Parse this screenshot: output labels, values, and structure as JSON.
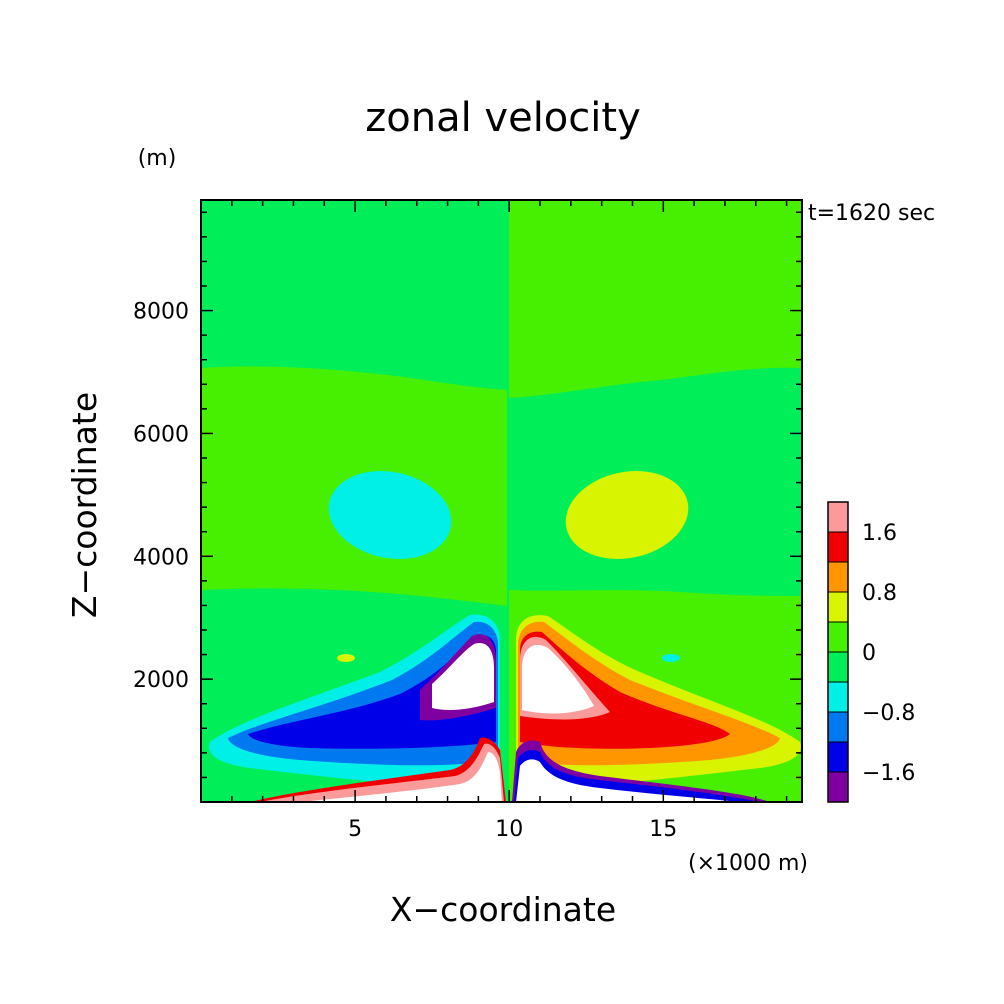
{
  "chart_data": {
    "type": "heatmap",
    "title": "zonal velocity",
    "time_label": "t=1620 sec",
    "xlabel": "X−coordinate",
    "ylabel": "Z−coordinate",
    "x_unit": "(×1000 m)",
    "y_unit": "(m)",
    "xlim": [
      0,
      19.5
    ],
    "ylim": [
      0,
      9800
    ],
    "x_ticks": [
      {
        "value": 5,
        "label": "5"
      },
      {
        "value": 10,
        "label": "10"
      },
      {
        "value": 15,
        "label": "15"
      }
    ],
    "y_ticks": [
      {
        "value": 2000,
        "label": "2000"
      },
      {
        "value": 4000,
        "label": "4000"
      },
      {
        "value": 6000,
        "label": "6000"
      },
      {
        "value": 8000,
        "label": "8000"
      }
    ],
    "colorbar": {
      "levels": [
        -2.4,
        -1.6,
        -1.2,
        -0.8,
        -0.4,
        0,
        0.4,
        0.8,
        1.2,
        1.6,
        2.0
      ],
      "colors": [
        "#7f00a0",
        "#0000e8",
        "#0078f0",
        "#00f0e8",
        "#00ef58",
        "#46f000",
        "#d8f400",
        "#ff9600",
        "#f00000",
        "#fa9a9a"
      ],
      "tick_labels": [
        {
          "value": -1.6,
          "label": "−1.6"
        },
        {
          "value": -0.8,
          "label": "−0.8"
        },
        {
          "value": 0,
          "label": "0"
        },
        {
          "value": 0.8,
          "label": "0.8"
        },
        {
          "value": 1.6,
          "label": "1.6"
        }
      ]
    },
    "field": {
      "negative_color": "#00ef58",
      "positive_color": "#46f000",
      "center_x": 10,
      "regions": [
        {
          "name": "upper-negative-band",
          "value": -0.2,
          "x": [
            0,
            10
          ],
          "z": [
            7100,
            9800
          ]
        },
        {
          "name": "upper-positive-band",
          "value": 0.2,
          "x": [
            10,
            19.5
          ],
          "z": [
            6800,
            9800
          ]
        },
        {
          "name": "left-mid-vortex",
          "value": -0.6,
          "center": [
            6,
            5000
          ],
          "radii": [
            2.0,
            500
          ]
        },
        {
          "name": "right-mid-vortex",
          "value": 0.6,
          "center": [
            14,
            5000
          ],
          "radii": [
            2.0,
            500
          ]
        },
        {
          "name": "left-low-jet",
          "value": -2.0,
          "center": [
            5,
            1200
          ],
          "extent": [
            1,
            9.5
          ]
        },
        {
          "name": "right-low-jet",
          "value": 2.0,
          "center": [
            15,
            1200
          ],
          "extent": [
            10.5,
            19
          ]
        }
      ]
    }
  }
}
